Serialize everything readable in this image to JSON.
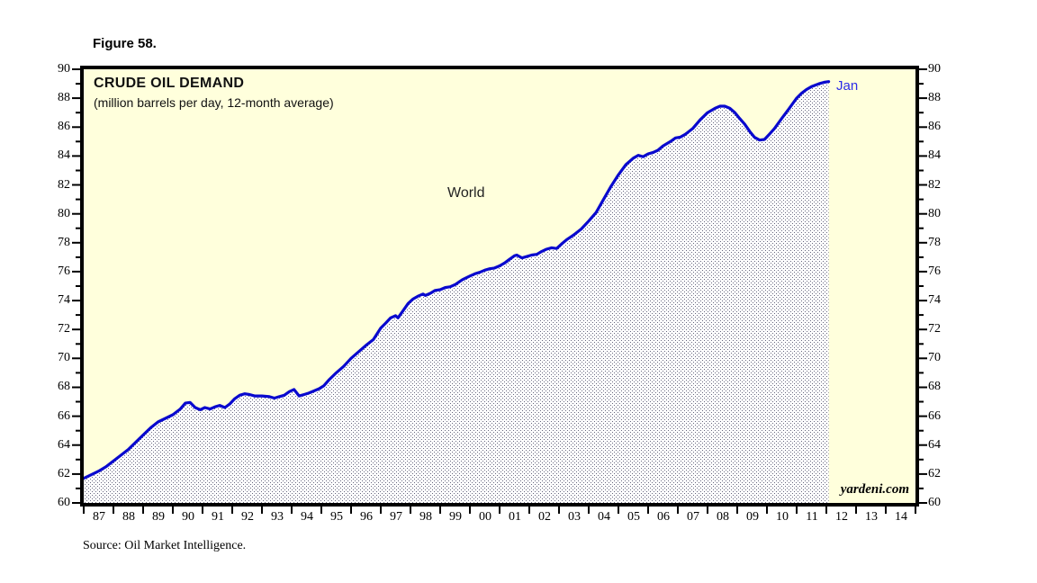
{
  "figure_label": "Figure 58.",
  "chart": {
    "title": "CRUDE OIL DEMAND",
    "subtitle": "(million barrels per day, 12-month average)",
    "series_label": "World",
    "end_label": "Jan",
    "watermark": "yardeni.com",
    "source": "Source: Oil Market Intelligence.",
    "colors": {
      "plot_background": "#FFFFDC",
      "line": "#0909CE",
      "annotation_blue": "#2B2BE8",
      "stipple_dot": "#4A4A66",
      "axis": "#000000"
    }
  },
  "chart_data": {
    "type": "area",
    "title": "CRUDE OIL DEMAND",
    "subtitle": "(million barrels per day, 12-month average)",
    "xlabel": "",
    "ylabel": "million barrels per day",
    "x_range": [
      1987,
      2015
    ],
    "ylim": [
      60,
      90
    ],
    "y_major_step": 2,
    "y_minor_step": 1,
    "grid": "off",
    "legend_position": "none",
    "x_tick_labels": [
      "87",
      "88",
      "89",
      "90",
      "91",
      "92",
      "93",
      "94",
      "95",
      "96",
      "97",
      "98",
      "99",
      "00",
      "01",
      "02",
      "03",
      "04",
      "05",
      "06",
      "07",
      "08",
      "09",
      "10",
      "11",
      "12",
      "13",
      "14"
    ],
    "y_tick_labels": [
      "90",
      "88",
      "86",
      "84",
      "82",
      "80",
      "78",
      "76",
      "74",
      "72",
      "70",
      "68",
      "66",
      "64",
      "62",
      "60"
    ],
    "annotations": [
      {
        "text": "World",
        "near_x": 1999.3,
        "near_y": 82.0
      },
      {
        "text": "Jan",
        "near_x": 2012.08,
        "near_y": 89.15
      }
    ],
    "series": [
      {
        "name": "World",
        "points": [
          [
            1987.0,
            61.7
          ],
          [
            1987.25,
            61.95
          ],
          [
            1987.5,
            62.2
          ],
          [
            1987.75,
            62.5
          ],
          [
            1988.0,
            62.9
          ],
          [
            1988.25,
            63.3
          ],
          [
            1988.5,
            63.7
          ],
          [
            1988.75,
            64.2
          ],
          [
            1989.0,
            64.7
          ],
          [
            1989.25,
            65.2
          ],
          [
            1989.5,
            65.6
          ],
          [
            1989.75,
            65.85
          ],
          [
            1990.0,
            66.1
          ],
          [
            1990.25,
            66.5
          ],
          [
            1990.42,
            66.9
          ],
          [
            1990.58,
            66.95
          ],
          [
            1990.75,
            66.6
          ],
          [
            1990.92,
            66.45
          ],
          [
            1991.08,
            66.6
          ],
          [
            1991.25,
            66.5
          ],
          [
            1991.42,
            66.65
          ],
          [
            1991.58,
            66.75
          ],
          [
            1991.75,
            66.6
          ],
          [
            1991.92,
            66.85
          ],
          [
            1992.08,
            67.2
          ],
          [
            1992.25,
            67.45
          ],
          [
            1992.42,
            67.55
          ],
          [
            1992.58,
            67.5
          ],
          [
            1992.75,
            67.4
          ],
          [
            1993.0,
            67.4
          ],
          [
            1993.25,
            67.35
          ],
          [
            1993.42,
            67.25
          ],
          [
            1993.58,
            67.35
          ],
          [
            1993.75,
            67.45
          ],
          [
            1993.92,
            67.7
          ],
          [
            1994.08,
            67.85
          ],
          [
            1994.25,
            67.4
          ],
          [
            1994.42,
            67.5
          ],
          [
            1994.58,
            67.6
          ],
          [
            1994.75,
            67.75
          ],
          [
            1994.92,
            67.9
          ],
          [
            1995.08,
            68.1
          ],
          [
            1995.25,
            68.5
          ],
          [
            1995.5,
            69.0
          ],
          [
            1995.75,
            69.45
          ],
          [
            1996.0,
            70.0
          ],
          [
            1996.25,
            70.45
          ],
          [
            1996.5,
            70.9
          ],
          [
            1996.75,
            71.3
          ],
          [
            1997.0,
            72.1
          ],
          [
            1997.17,
            72.45
          ],
          [
            1997.33,
            72.8
          ],
          [
            1997.5,
            72.95
          ],
          [
            1997.58,
            72.8
          ],
          [
            1997.75,
            73.3
          ],
          [
            1997.92,
            73.8
          ],
          [
            1998.08,
            74.1
          ],
          [
            1998.25,
            74.3
          ],
          [
            1998.42,
            74.45
          ],
          [
            1998.5,
            74.35
          ],
          [
            1998.67,
            74.5
          ],
          [
            1998.83,
            74.7
          ],
          [
            1999.0,
            74.75
          ],
          [
            1999.17,
            74.9
          ],
          [
            1999.33,
            74.95
          ],
          [
            1999.5,
            75.1
          ],
          [
            1999.75,
            75.45
          ],
          [
            2000.0,
            75.7
          ],
          [
            2000.17,
            75.85
          ],
          [
            2000.33,
            75.95
          ],
          [
            2000.5,
            76.1
          ],
          [
            2000.67,
            76.2
          ],
          [
            2000.83,
            76.25
          ],
          [
            2001.0,
            76.4
          ],
          [
            2001.17,
            76.6
          ],
          [
            2001.33,
            76.85
          ],
          [
            2001.5,
            77.1
          ],
          [
            2001.58,
            77.15
          ],
          [
            2001.75,
            76.95
          ],
          [
            2001.92,
            77.05
          ],
          [
            2002.08,
            77.15
          ],
          [
            2002.25,
            77.2
          ],
          [
            2002.42,
            77.4
          ],
          [
            2002.58,
            77.55
          ],
          [
            2002.75,
            77.65
          ],
          [
            2002.92,
            77.6
          ],
          [
            2003.08,
            77.9
          ],
          [
            2003.25,
            78.2
          ],
          [
            2003.5,
            78.55
          ],
          [
            2003.75,
            78.95
          ],
          [
            2004.0,
            79.5
          ],
          [
            2004.25,
            80.1
          ],
          [
            2004.5,
            81.0
          ],
          [
            2004.75,
            81.9
          ],
          [
            2005.0,
            82.7
          ],
          [
            2005.25,
            83.4
          ],
          [
            2005.5,
            83.85
          ],
          [
            2005.67,
            84.05
          ],
          [
            2005.83,
            83.95
          ],
          [
            2006.0,
            84.15
          ],
          [
            2006.17,
            84.25
          ],
          [
            2006.33,
            84.4
          ],
          [
            2006.5,
            84.7
          ],
          [
            2006.75,
            85.0
          ],
          [
            2006.92,
            85.25
          ],
          [
            2007.08,
            85.3
          ],
          [
            2007.25,
            85.5
          ],
          [
            2007.5,
            85.9
          ],
          [
            2007.75,
            86.5
          ],
          [
            2008.0,
            87.0
          ],
          [
            2008.25,
            87.3
          ],
          [
            2008.42,
            87.45
          ],
          [
            2008.58,
            87.45
          ],
          [
            2008.75,
            87.3
          ],
          [
            2008.92,
            87.0
          ],
          [
            2009.08,
            86.6
          ],
          [
            2009.25,
            86.2
          ],
          [
            2009.42,
            85.7
          ],
          [
            2009.58,
            85.3
          ],
          [
            2009.75,
            85.1
          ],
          [
            2009.92,
            85.15
          ],
          [
            2010.08,
            85.5
          ],
          [
            2010.25,
            85.9
          ],
          [
            2010.5,
            86.6
          ],
          [
            2010.75,
            87.3
          ],
          [
            2011.0,
            88.0
          ],
          [
            2011.17,
            88.35
          ],
          [
            2011.33,
            88.6
          ],
          [
            2011.5,
            88.8
          ],
          [
            2011.75,
            89.0
          ],
          [
            2011.92,
            89.1
          ],
          [
            2012.08,
            89.15
          ]
        ]
      }
    ]
  }
}
